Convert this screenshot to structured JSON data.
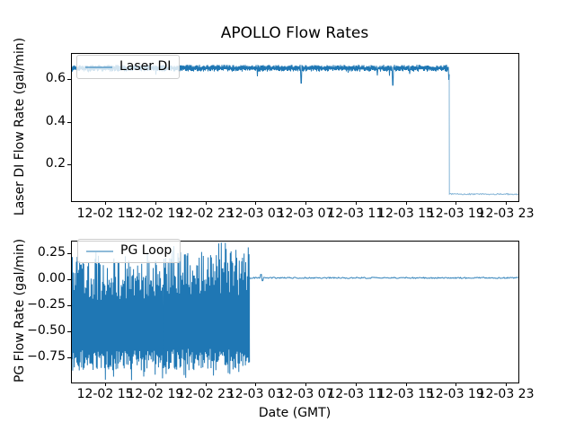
{
  "figure": {
    "title": "APOLLO Flow Rates",
    "background_color": "#ffffff",
    "line_color": "#1f77b4",
    "text_color": "#000000"
  },
  "xaxis": {
    "label": "Date (GMT)",
    "xlim_hours": [
      -2.73,
      32.93
    ],
    "tick_hours": [
      0,
      4,
      8,
      12,
      16,
      20,
      24,
      28,
      32
    ],
    "tick_labels": [
      "12-02 15",
      "12-02 19",
      "12-02 23",
      "12-03 03",
      "12-03 07",
      "12-03 11",
      "12-03 15",
      "12-03 19",
      "12-03 23"
    ]
  },
  "chart_data": [
    {
      "type": "line",
      "name": "laser-di",
      "ylabel": "Laser DI Flow Rate (gal/min)",
      "legend": "Laser DI",
      "legend_position": "upper left",
      "grid": false,
      "ylim": [
        0.032,
        0.722
      ],
      "ytick_values": [
        0.2,
        0.4,
        0.6
      ],
      "ytick_labels": [
        "0.2",
        "0.4",
        "0.6"
      ],
      "seed": 7,
      "segments": [
        {
          "kind": "noisy",
          "from_hour": -2.73,
          "to_hour": 27.42,
          "mean": 0.655,
          "noise": 0.016,
          "dip_chance": 0.012,
          "dip_depth": 0.05,
          "line_opacity": 1,
          "dips": [
            {
              "hour": 15.6,
              "value": 0.585
            },
            {
              "hour": 22.9,
              "value": 0.575
            }
          ]
        },
        {
          "kind": "flat",
          "from_hour": 27.42,
          "to_hour": 32.93,
          "mean": 0.065,
          "noise": 0.003,
          "line_opacity": 0.55
        }
      ],
      "summary": "Steady ~0.65 gal/min with small noise from 12-02 ~12:15 until a step drop at 12-03 ~18:25 down to ~0.065 gal/min, flat through 12-03 ~23:55."
    },
    {
      "type": "line",
      "name": "pg-loop",
      "ylabel": "PG Flow Rate (gal/min)",
      "legend": "PG Loop",
      "legend_position": "upper left",
      "grid": false,
      "ylim": [
        -0.983,
        0.371
      ],
      "ytick_values": [
        -0.75,
        -0.5,
        -0.25,
        0.0,
        0.25
      ],
      "ytick_labels": [
        "−0.75",
        "−0.50",
        "−0.25",
        "0.00",
        "0.25"
      ],
      "seed": 13,
      "segments": [
        {
          "kind": "band",
          "from_hour": -2.73,
          "to_hour": 4.6,
          "low": -0.87,
          "high": 0.22,
          "spike_low": -0.97,
          "spike_high": 0.28,
          "spike_chance": 0.05,
          "line_opacity": 1
        },
        {
          "kind": "band",
          "from_hour": 4.6,
          "to_hour": 11.45,
          "low": -0.87,
          "high": 0.3,
          "spike_low": -0.95,
          "spike_high": 0.37,
          "spike_chance": 0.06,
          "line_opacity": 1
        },
        {
          "kind": "flat",
          "from_hour": 11.45,
          "to_hour": 32.93,
          "mean": 0.022,
          "noise": 0.006,
          "line_opacity": 0.9,
          "blips": [
            {
              "hour": 12.35,
              "value": 0.055
            },
            {
              "hour": 12.5,
              "value": -0.005
            }
          ]
        }
      ],
      "summary": "Rapid oscillation between ~−0.9 and ~+0.3 gal/min until 12-03 ~02:30, then flat near 0.02 gal/min through 12-03 ~23:55."
    }
  ]
}
